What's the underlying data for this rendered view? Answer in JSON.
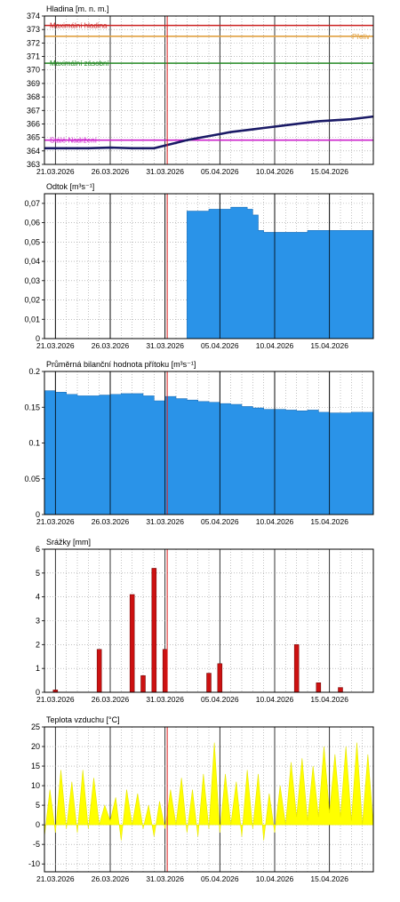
{
  "chart_data": [
    {
      "type": "line",
      "title": "Hladina [m. n. m.]",
      "ylim": [
        363,
        374
      ],
      "yticks": [
        374,
        373,
        372,
        371,
        370,
        369,
        368,
        367,
        366,
        365,
        364,
        363
      ],
      "xlim": [
        0,
        30
      ],
      "xticks": [
        {
          "x": 1,
          "label": "21.03.2026"
        },
        {
          "x": 6,
          "label": "26.03.2026"
        },
        {
          "x": 11,
          "label": "31.03.2026"
        },
        {
          "x": 16,
          "label": "05.04.2026"
        },
        {
          "x": 21,
          "label": "10.04.2026"
        },
        {
          "x": 26,
          "label": "15.04.2026"
        }
      ],
      "today": 11.2,
      "grid": true,
      "reference_lines": [
        {
          "name": "Maximální hladina",
          "value": 373.3,
          "color": "#cc2222"
        },
        {
          "name": "Přeliv",
          "value": 372.5,
          "color": "#e0a040",
          "align": "right"
        },
        {
          "name": "Maximální zásobní",
          "value": 370.5,
          "color": "#228822"
        },
        {
          "name": "Stálé Nadržení",
          "value": 364.8,
          "color": "#cc22cc"
        }
      ],
      "series": [
        {
          "color": "#1a1a66",
          "x": [
            0,
            2,
            4,
            6,
            8,
            10,
            11,
            12,
            13,
            14,
            15,
            16,
            17,
            18,
            19,
            20,
            21,
            22,
            23,
            24,
            25,
            26,
            27,
            28,
            29,
            30
          ],
          "y": [
            364.2,
            364.2,
            364.2,
            364.25,
            364.2,
            364.2,
            364.4,
            364.6,
            364.8,
            364.95,
            365.1,
            365.25,
            365.4,
            365.5,
            365.6,
            365.7,
            365.8,
            365.9,
            366.0,
            366.1,
            366.2,
            366.25,
            366.3,
            366.35,
            366.45,
            366.55
          ]
        }
      ]
    },
    {
      "type": "area",
      "title": "Odtok [m³s⁻¹]",
      "ylim": [
        0,
        0.075
      ],
      "yticks": [
        {
          "v": 0.07,
          "label": "0,07"
        },
        {
          "v": 0.06,
          "label": "0,06"
        },
        {
          "v": 0.05,
          "label": "0,05"
        },
        {
          "v": 0.04,
          "label": "0,04"
        },
        {
          "v": 0.03,
          "label": "0,03"
        },
        {
          "v": 0.02,
          "label": "0,02"
        },
        {
          "v": 0.01,
          "label": "0,01"
        },
        {
          "v": 0,
          "label": "0"
        }
      ],
      "xlim": [
        0,
        30
      ],
      "xticks": [
        {
          "x": 1,
          "label": "21.03.2026"
        },
        {
          "x": 6,
          "label": "26.03.2026"
        },
        {
          "x": 11,
          "label": "31.03.2026"
        },
        {
          "x": 16,
          "label": "05.04.2026"
        },
        {
          "x": 21,
          "label": "10.04.2026"
        },
        {
          "x": 26,
          "label": "15.04.2026"
        }
      ],
      "today": 11.2,
      "grid": true,
      "fill": "#2a93e8",
      "series": [
        {
          "x": [
            13,
            13.5,
            15,
            16,
            17,
            18,
            18.5,
            19,
            19.5,
            20,
            22,
            24,
            25,
            26,
            27,
            28,
            29,
            30
          ],
          "y": [
            0.066,
            0.066,
            0.067,
            0.067,
            0.068,
            0.068,
            0.067,
            0.064,
            0.056,
            0.055,
            0.055,
            0.056,
            0.056,
            0.056,
            0.056,
            0.056,
            0.056,
            0.056
          ]
        }
      ]
    },
    {
      "type": "area",
      "title": "Průměrná bilanční hodnota přítoku [m³s⁻¹]",
      "ylim": [
        0,
        0.2
      ],
      "yticks": [
        {
          "v": 0.2,
          "label": "0.2"
        },
        {
          "v": 0.15,
          "label": "0.15"
        },
        {
          "v": 0.1,
          "label": "0.1"
        },
        {
          "v": 0.05,
          "label": "0.05"
        },
        {
          "v": 0,
          "label": "0"
        }
      ],
      "xlim": [
        0,
        30
      ],
      "xticks": [
        {
          "x": 1,
          "label": "21.03.2026"
        },
        {
          "x": 6,
          "label": "26.03.2026"
        },
        {
          "x": 11,
          "label": "31.03.2026"
        },
        {
          "x": 16,
          "label": "05.04.2026"
        },
        {
          "x": 21,
          "label": "10.04.2026"
        },
        {
          "x": 26,
          "label": "15.04.2026"
        }
      ],
      "today": 11.2,
      "grid": true,
      "fill": "#2a93e8",
      "series": [
        {
          "x": [
            0,
            1,
            2,
            3,
            4,
            5,
            6,
            7,
            8,
            9,
            10,
            11,
            12,
            13,
            14,
            15,
            16,
            17,
            18,
            19,
            20,
            21,
            22,
            23,
            24,
            25,
            26,
            27,
            28,
            29,
            30
          ],
          "y": [
            0.173,
            0.171,
            0.168,
            0.166,
            0.166,
            0.167,
            0.168,
            0.169,
            0.169,
            0.166,
            0.159,
            0.165,
            0.162,
            0.16,
            0.158,
            0.157,
            0.155,
            0.154,
            0.151,
            0.149,
            0.147,
            0.147,
            0.146,
            0.145,
            0.146,
            0.143,
            0.142,
            0.142,
            0.143,
            0.143,
            0.141
          ]
        }
      ]
    },
    {
      "type": "bar",
      "title": "Srážky [mm]",
      "ylim": [
        0,
        6
      ],
      "yticks": [
        {
          "v": 6,
          "label": "6"
        },
        {
          "v": 5,
          "label": "5"
        },
        {
          "v": 4,
          "label": "4"
        },
        {
          "v": 3,
          "label": "3"
        },
        {
          "v": 2,
          "label": "2"
        },
        {
          "v": 1,
          "label": "1"
        },
        {
          "v": 0,
          "label": "0"
        }
      ],
      "xlim": [
        0,
        30
      ],
      "xticks": [
        {
          "x": 1,
          "label": "21.03.2026"
        },
        {
          "x": 6,
          "label": "26.03.2026"
        },
        {
          "x": 11,
          "label": "31.03.2026"
        },
        {
          "x": 16,
          "label": "05.04.2026"
        },
        {
          "x": 21,
          "label": "10.04.2026"
        },
        {
          "x": 26,
          "label": "15.04.2026"
        }
      ],
      "today": 11.2,
      "grid": true,
      "fill": "#cc1111",
      "series": [
        {
          "x": [
            1,
            5,
            8,
            9,
            10,
            11
          ],
          "y": [
            0.1,
            1.8,
            4.1,
            0.7,
            5.2,
            1.8
          ]
        },
        {
          "x": [
            15,
            16,
            23,
            25,
            27
          ],
          "y": [
            0.8,
            1.2,
            2.0,
            0.4,
            0.2
          ]
        }
      ]
    },
    {
      "type": "area",
      "title": "Teplota vzduchu [°C]",
      "ylim": [
        -12,
        25
      ],
      "yticks": [
        {
          "v": 25,
          "label": "25"
        },
        {
          "v": 20,
          "label": "20"
        },
        {
          "v": 15,
          "label": "15"
        },
        {
          "v": 10,
          "label": "10"
        },
        {
          "v": 5,
          "label": "5"
        },
        {
          "v": 0,
          "label": "0"
        },
        {
          "v": -5,
          "label": "-5"
        },
        {
          "v": -10,
          "label": "-10"
        }
      ],
      "xlim": [
        0,
        30
      ],
      "xticks": [
        {
          "x": 1,
          "label": "21.03.2026"
        },
        {
          "x": 6,
          "label": "26.03.2026"
        },
        {
          "x": 11,
          "label": "31.03.2026"
        },
        {
          "x": 16,
          "label": "05.04.2026"
        },
        {
          "x": 21,
          "label": "10.04.2026"
        },
        {
          "x": 26,
          "label": "15.04.2026"
        }
      ],
      "today": 11.2,
      "grid": true,
      "fill": "#ffff00",
      "series": [
        {
          "min": [
            -3,
            -2,
            -1,
            -2,
            -1,
            0,
            1,
            -4,
            0,
            -1,
            -3,
            -1,
            0,
            -2,
            -3,
            -1,
            -2,
            0,
            -3,
            -1,
            -4,
            -2,
            0,
            2,
            1,
            2,
            3,
            2,
            1,
            0
          ],
          "max": [
            9,
            14,
            11,
            14,
            12,
            5,
            7,
            9,
            8,
            5,
            6,
            9,
            12,
            9,
            13,
            21,
            13,
            11,
            14,
            13,
            8,
            10,
            16,
            17,
            15,
            20,
            18,
            20,
            21,
            18
          ]
        }
      ]
    }
  ]
}
